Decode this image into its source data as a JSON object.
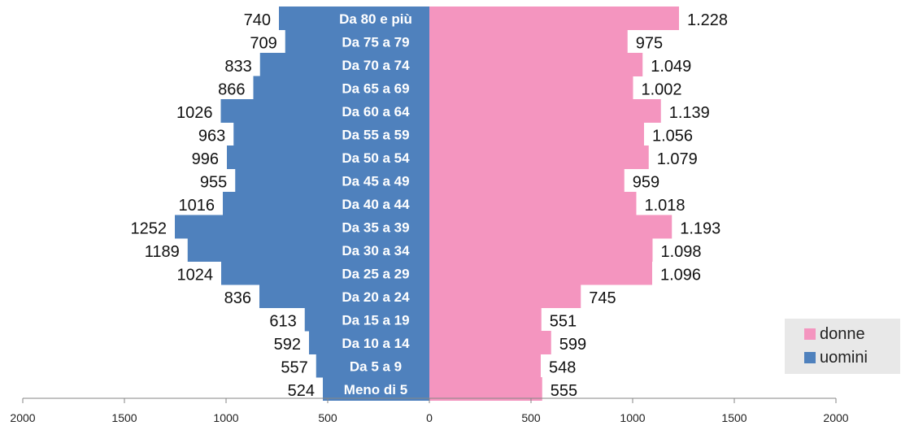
{
  "chart_data": {
    "type": "bar",
    "orientation": "horizontal-population-pyramid",
    "categories": [
      "Da 80 e più",
      "Da 75 a 79",
      "Da 70 a 74",
      "Da 65 a 69",
      "Da 60 a 64",
      "Da 55 a 59",
      "Da 50 a 54",
      "Da 45 a 49",
      "Da 40 a 44",
      "Da 35 a 39",
      "Da 30 a 34",
      "Da 25 a 29",
      "Da 20 a 24",
      "Da 15 a 19",
      "Da 10 a 14",
      "Da 5 a 9",
      "Meno di 5"
    ],
    "series": [
      {
        "name": "uomini",
        "color": "#4f81bd",
        "side": "left",
        "values": [
          740,
          709,
          833,
          866,
          1026,
          963,
          996,
          955,
          1016,
          1252,
          1189,
          1024,
          836,
          613,
          592,
          557,
          524
        ],
        "labels": [
          "740",
          "709",
          "833",
          "866",
          "1026",
          "963",
          "996",
          "955",
          "1016",
          "1252",
          "1189",
          "1024",
          "836",
          "613",
          "592",
          "557",
          "524"
        ]
      },
      {
        "name": "donne",
        "color": "#f495bf",
        "side": "right",
        "values": [
          1228,
          975,
          1049,
          1002,
          1139,
          1056,
          1079,
          959,
          1018,
          1193,
          1098,
          1096,
          745,
          551,
          599,
          548,
          555
        ],
        "labels": [
          "1.228",
          "975",
          "1.049",
          "1.002",
          "1.139",
          "1.056",
          "1.079",
          "959",
          "1.018",
          "1.193",
          "1.098",
          "1.096",
          "745",
          "551",
          "599",
          "548",
          "555"
        ]
      }
    ],
    "xticks": [
      "2000",
      "1500",
      "1000",
      "500",
      "0",
      "500",
      "1000",
      "1500",
      "2000"
    ],
    "xlim": [
      -2000,
      2000
    ],
    "grid": false,
    "legend_position": "bottom-right"
  },
  "legend": {
    "items": [
      {
        "label": "donne",
        "color": "#f495bf"
      },
      {
        "label": "uomini",
        "color": "#4f81bd"
      }
    ]
  }
}
